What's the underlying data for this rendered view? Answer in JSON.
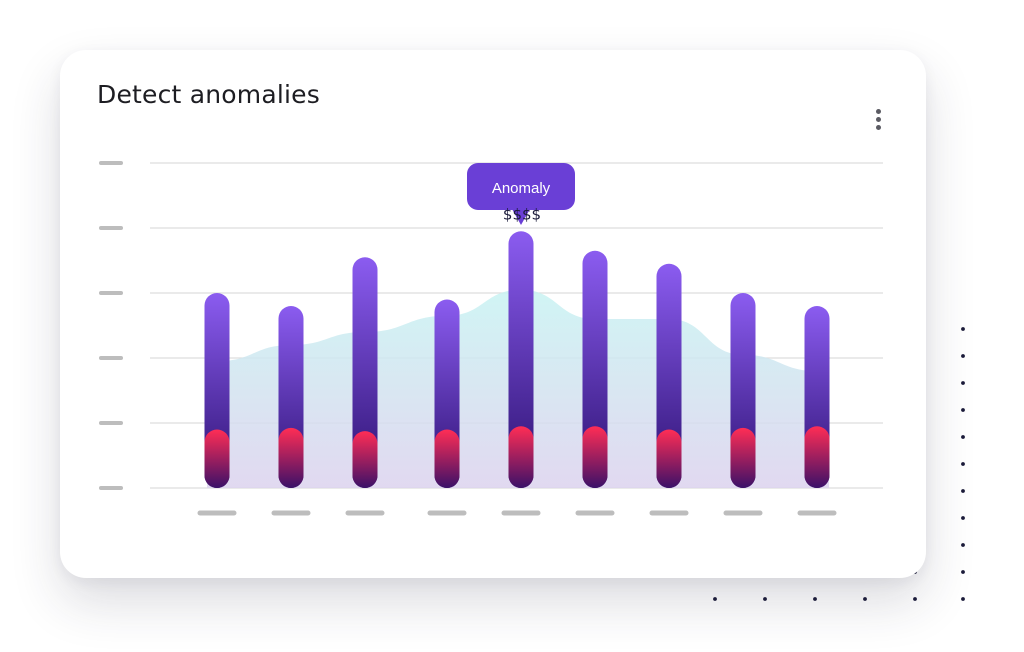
{
  "card": {
    "title": "Detect anomalies",
    "menu_icon": "more-vertical-icon"
  },
  "chart_data": {
    "type": "bar",
    "title": "Detect anomalies",
    "categories": [
      "",
      "",
      "",
      "",
      "",
      "",
      "",
      "",
      ""
    ],
    "series": [
      {
        "values": [
          6.0,
          5.6,
          7.1,
          5.8,
          7.9,
          7.3,
          6.9,
          6.0,
          5.6
        ]
      },
      {
        "values": [
          1.8,
          1.85,
          1.75,
          1.8,
          1.9,
          1.9,
          1.8,
          1.85,
          1.9
        ]
      }
    ],
    "background_area": [
      3.9,
      4.4,
      4.8,
      5.3,
      6.1,
      5.2,
      5.2,
      4.1,
      3.6
    ],
    "ylim": [
      0,
      10
    ],
    "grid": true,
    "legend": "none",
    "annotation": {
      "index": 4,
      "label": "Anomaly",
      "value_label": "$$$$"
    },
    "colors": {
      "bar_top": "#8b5cf0",
      "bar_bottom": "#2c1170",
      "accent_top": "#ff2d55",
      "accent_bottom": "#3b1168",
      "area_top": "#c8f3f2",
      "area_bottom": "#dcd2ee",
      "tooltip": "#6a3fd6",
      "gridline": "#dedede",
      "tick_placeholder": "#bdbdbd"
    }
  }
}
